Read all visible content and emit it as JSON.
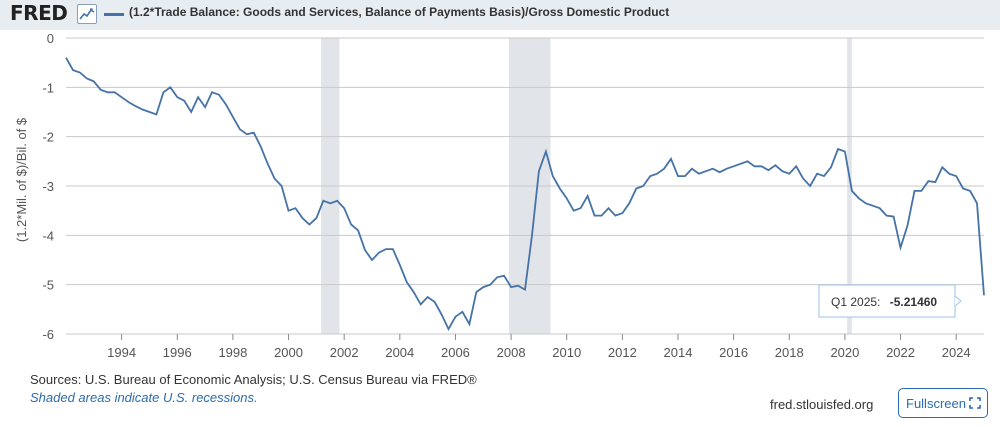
{
  "header": {
    "logo_text": "FRED",
    "logo_icon": "line-chart-icon",
    "series_title": "(1.2*Trade Balance: Goods and Services, Balance of Payments Basis)/Gross Domestic Product"
  },
  "footer": {
    "sources": "Sources: U.S. Bureau of Economic Analysis; U.S. Census Bureau via FRED®",
    "shaded_note": "Shaded areas indicate U.S. recessions.",
    "site": "fred.stlouisfed.org",
    "fullscreen_label": "Fullscreen",
    "fullscreen_icon": "expand-icon"
  },
  "tooltip": {
    "label": "Q1 2025:",
    "value": "-5.21460"
  },
  "colors": {
    "line": "#4572a7",
    "recession": "#e1e5ea",
    "header_bg": "#e8edf2",
    "link": "#2a6cb0"
  },
  "chart_data": {
    "type": "line",
    "ylabel": "(1.2*Mil. of $)/Bil. of $",
    "xlabel": "",
    "xlim": [
      1992.0,
      2025.0
    ],
    "ylim": [
      -6,
      0
    ],
    "x_ticks": [
      1994,
      1996,
      1998,
      2000,
      2002,
      2004,
      2006,
      2008,
      2010,
      2012,
      2014,
      2016,
      2018,
      2020,
      2022,
      2024
    ],
    "y_ticks": [
      0,
      -1,
      -2,
      -3,
      -4,
      -5,
      -6
    ],
    "grid": "horizontal",
    "recessions": [
      [
        2001.17,
        2001.83
      ],
      [
        2007.92,
        2009.42
      ],
      [
        2020.08,
        2020.25
      ]
    ],
    "series": [
      {
        "x": [
          1992.0,
          1992.25,
          1992.5,
          1992.75,
          1993.0,
          1993.25,
          1993.5,
          1993.75,
          1994.0,
          1994.25,
          1994.5,
          1994.75,
          1995.0,
          1995.25,
          1995.5,
          1995.75,
          1996.0,
          1996.25,
          1996.5,
          1996.75,
          1997.0,
          1997.25,
          1997.5,
          1997.75,
          1998.0,
          1998.25,
          1998.5,
          1998.75,
          1999.0,
          1999.25,
          1999.5,
          1999.75,
          2000.0,
          2000.25,
          2000.5,
          2000.75,
          2001.0,
          2001.25,
          2001.5,
          2001.75,
          2002.0,
          2002.25,
          2002.5,
          2002.75,
          2003.0,
          2003.25,
          2003.5,
          2003.75,
          2004.0,
          2004.25,
          2004.5,
          2004.75,
          2005.0,
          2005.25,
          2005.5,
          2005.75,
          2006.0,
          2006.25,
          2006.5,
          2006.75,
          2007.0,
          2007.25,
          2007.5,
          2007.75,
          2008.0,
          2008.25,
          2008.5,
          2008.75,
          2009.0,
          2009.25,
          2009.5,
          2009.75,
          2010.0,
          2010.25,
          2010.5,
          2010.75,
          2011.0,
          2011.25,
          2011.5,
          2011.75,
          2012.0,
          2012.25,
          2012.5,
          2012.75,
          2013.0,
          2013.25,
          2013.5,
          2013.75,
          2014.0,
          2014.25,
          2014.5,
          2014.75,
          2015.0,
          2015.25,
          2015.5,
          2015.75,
          2016.0,
          2016.25,
          2016.5,
          2016.75,
          2017.0,
          2017.25,
          2017.5,
          2017.75,
          2018.0,
          2018.25,
          2018.5,
          2018.75,
          2019.0,
          2019.25,
          2019.5,
          2019.75,
          2020.0,
          2020.25,
          2020.5,
          2020.75,
          2021.0,
          2021.25,
          2021.5,
          2021.75,
          2022.0,
          2022.25,
          2022.5,
          2022.75,
          2023.0,
          2023.25,
          2023.5,
          2023.75,
          2024.0,
          2024.25,
          2024.5,
          2024.75,
          2025.0
        ],
        "values": [
          -0.4,
          -0.65,
          -0.7,
          -0.82,
          -0.88,
          -1.05,
          -1.1,
          -1.1,
          -1.2,
          -1.3,
          -1.38,
          -1.45,
          -1.5,
          -1.55,
          -1.1,
          -1.0,
          -1.2,
          -1.27,
          -1.5,
          -1.2,
          -1.4,
          -1.1,
          -1.15,
          -1.35,
          -1.6,
          -1.85,
          -1.95,
          -1.92,
          -2.2,
          -2.55,
          -2.85,
          -3.0,
          -3.5,
          -3.45,
          -3.65,
          -3.78,
          -3.65,
          -3.3,
          -3.35,
          -3.3,
          -3.45,
          -3.78,
          -3.9,
          -4.3,
          -4.5,
          -4.35,
          -4.28,
          -4.28,
          -4.6,
          -4.95,
          -5.15,
          -5.4,
          -5.25,
          -5.35,
          -5.6,
          -5.9,
          -5.65,
          -5.55,
          -5.8,
          -5.15,
          -5.05,
          -5.0,
          -4.85,
          -4.82,
          -5.05,
          -5.02,
          -5.1,
          -4.0,
          -2.7,
          -2.3,
          -2.8,
          -3.05,
          -3.25,
          -3.5,
          -3.45,
          -3.2,
          -3.6,
          -3.6,
          -3.45,
          -3.6,
          -3.55,
          -3.35,
          -3.05,
          -3.0,
          -2.8,
          -2.75,
          -2.65,
          -2.45,
          -2.8,
          -2.8,
          -2.65,
          -2.75,
          -2.7,
          -2.65,
          -2.72,
          -2.65,
          -2.6,
          -2.55,
          -2.5,
          -2.6,
          -2.6,
          -2.68,
          -2.58,
          -2.7,
          -2.75,
          -2.6,
          -2.85,
          -3.0,
          -2.75,
          -2.8,
          -2.62,
          -2.25,
          -2.3,
          -3.1,
          -3.25,
          -3.35,
          -3.4,
          -3.45,
          -3.6,
          -3.62,
          -4.25,
          -3.8,
          -3.1,
          -3.1,
          -2.9,
          -2.92,
          -2.62,
          -2.75,
          -2.8,
          -3.05,
          -3.1,
          -3.35,
          -5.2146
        ]
      }
    ]
  }
}
